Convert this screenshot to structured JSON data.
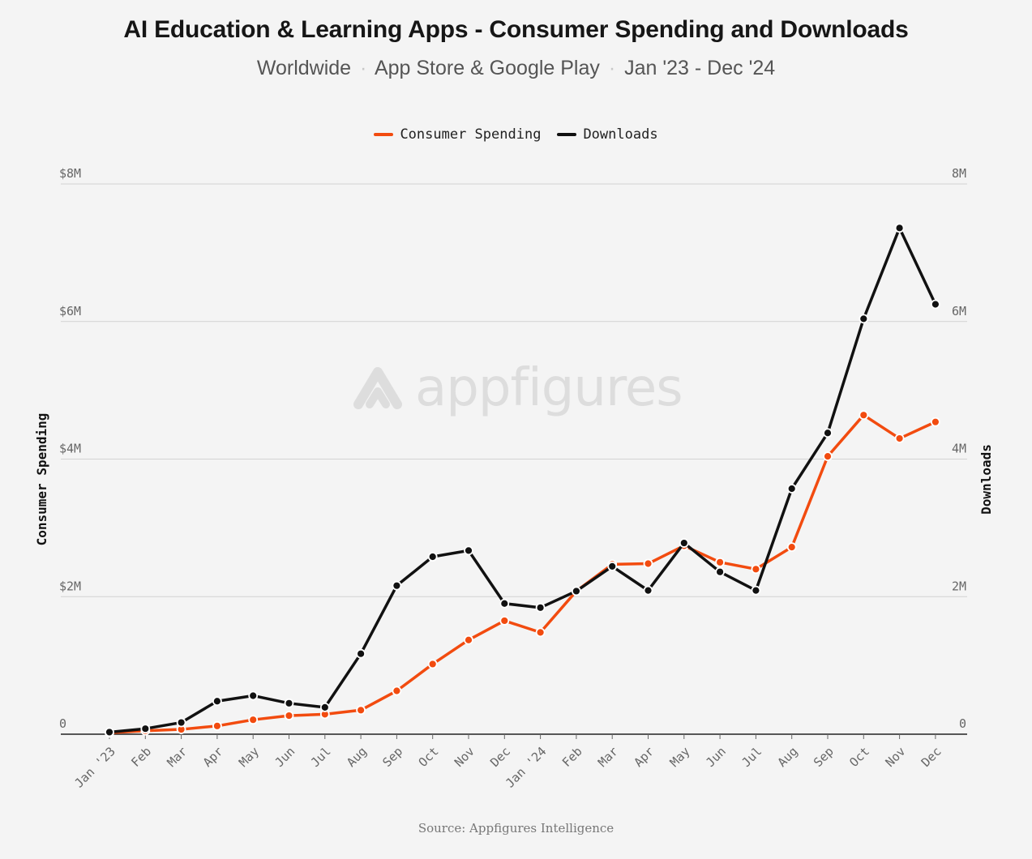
{
  "title": "AI Education & Learning Apps - Consumer Spending and Downloads",
  "subtitle": {
    "part1": "Worldwide",
    "part2": "App Store & Google Play",
    "part3": "Jan '23 - Dec '24",
    "separator": "·"
  },
  "watermark": {
    "text": "appfigures",
    "icon": "appfigures-logo-icon"
  },
  "source": "Source: Appfigures Intelligence",
  "colors": {
    "spending": "#f24b0f",
    "downloads": "#111111",
    "grid": "#d2d2d2",
    "background": "#f4f4f4"
  },
  "chart_data": {
    "type": "line",
    "title": "AI Education & Learning Apps - Consumer Spending and Downloads",
    "xlabel": "",
    "ylabel": "Consumer Spending",
    "y2label": "Downloads",
    "ylim": [
      0,
      8000000
    ],
    "y2lim": [
      0,
      8000000
    ],
    "yticks": [
      "0",
      "$2M",
      "$4M",
      "$6M",
      "$8M"
    ],
    "y2ticks": [
      "0",
      "2M",
      "4M",
      "6M",
      "8M"
    ],
    "grid": true,
    "legend_position": "top-center",
    "categories": [
      "Jan '23",
      "Feb",
      "Mar",
      "Apr",
      "May",
      "Jun",
      "Jul",
      "Aug",
      "Sep",
      "Oct",
      "Nov",
      "Dec",
      "Jan '24",
      "Feb",
      "Mar",
      "Apr",
      "May",
      "Jun",
      "Jul",
      "Aug",
      "Sep",
      "Oct",
      "Nov",
      "Dec"
    ],
    "series": [
      {
        "name": "Consumer Spending",
        "axis": "left",
        "values": [
          20000,
          50000,
          70000,
          120000,
          210000,
          270000,
          290000,
          350000,
          630000,
          1020000,
          1370000,
          1650000,
          1480000,
          2080000,
          2470000,
          2480000,
          2740000,
          2500000,
          2400000,
          2720000,
          4040000,
          4640000,
          4300000,
          4540000
        ]
      },
      {
        "name": "Downloads",
        "axis": "right",
        "values": [
          30000,
          80000,
          170000,
          480000,
          560000,
          450000,
          390000,
          1170000,
          2160000,
          2580000,
          2670000,
          1900000,
          1840000,
          2080000,
          2440000,
          2090000,
          2780000,
          2360000,
          2090000,
          3570000,
          4380000,
          6040000,
          7360000,
          6250000
        ]
      }
    ]
  }
}
